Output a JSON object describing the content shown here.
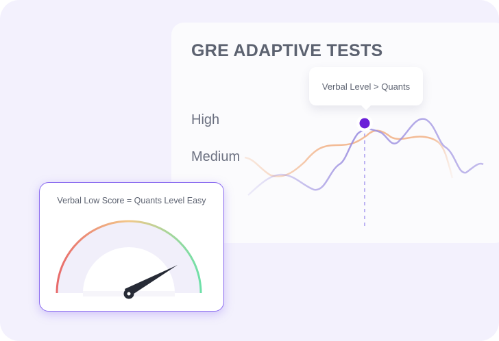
{
  "chart": {
    "title": "GRE ADAPTIVE TESTS",
    "y_labels": [
      "High",
      "Medium"
    ],
    "tooltip": "Verbal Level > Quants",
    "colors": {
      "verbal_line": "#9c8fe0",
      "quants_line": "#f2b48a",
      "marker": "#6a1fd8"
    }
  },
  "gauge": {
    "title": "Verbal Low Score = Quants Level Easy",
    "colors": {
      "low": "#e86a6a",
      "mid": "#f2c88a",
      "high": "#6de0a8",
      "needle": "#272b36",
      "border": "#8b6cf0"
    }
  }
}
